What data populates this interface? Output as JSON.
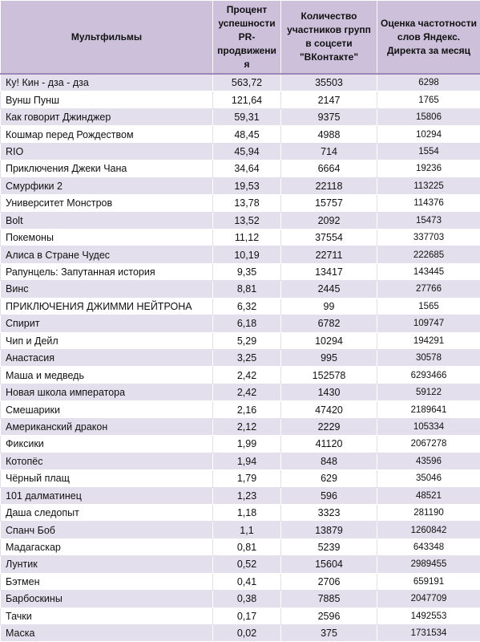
{
  "table": {
    "header": [
      "Мультфильмы",
      "Процент успешности PR-продвижения",
      "Количество участников групп в соцсети \"ВКонтакте\"",
      "Оценка частотности слов Яндекс. Директа за месяц"
    ],
    "rows": [
      [
        "Ку! Кин - дза - дза",
        "563,72",
        "35503",
        "6298"
      ],
      [
        "Вунш Пунш",
        "121,64",
        "2147",
        "1765"
      ],
      [
        "Как говорит Джинджер",
        "59,31",
        "9375",
        "15806"
      ],
      [
        "Кошмар перед Рождеством",
        "48,45",
        "4988",
        "10294"
      ],
      [
        "RIO",
        "45,94",
        "714",
        "1554"
      ],
      [
        "Приключения Джеки Чана",
        "34,64",
        "6664",
        "19236"
      ],
      [
        "Смурфики 2",
        "19,53",
        "22118",
        "113225"
      ],
      [
        "Университет Монстров",
        "13,78",
        "15757",
        "114376"
      ],
      [
        "Bolt",
        "13,52",
        "2092",
        "15473"
      ],
      [
        "Покемоны",
        "11,12",
        "37554",
        "337703"
      ],
      [
        "Алиса в Стране Чудес",
        "10,19",
        "22711",
        "222685"
      ],
      [
        "Рапунцель: Запутанная история",
        "9,35",
        "13417",
        "143445"
      ],
      [
        "Винс",
        "8,81",
        "2445",
        "27766"
      ],
      [
        "ПРИКЛЮЧЕНИЯ ДЖИММИ НЕЙТРОНА",
        "6,32",
        "99",
        "1565"
      ],
      [
        "Спирит",
        "6,18",
        "6782",
        "109747"
      ],
      [
        "Чип и Дейл",
        "5,29",
        "10294",
        "194291"
      ],
      [
        "Анастасия",
        "3,25",
        "995",
        "30578"
      ],
      [
        "Маша и медведь",
        "2,42",
        "152578",
        "6293466"
      ],
      [
        "Новая школа императора",
        "2,42",
        "1430",
        "59122"
      ],
      [
        "Смешарики",
        "2,16",
        "47420",
        "2189641"
      ],
      [
        "Американский дракон",
        "2,12",
        "2229",
        "105334"
      ],
      [
        "Фиксики",
        "1,99",
        "41120",
        "2067278"
      ],
      [
        "Котопёс",
        "1,94",
        "848",
        "43596"
      ],
      [
        "Чёрный плащ",
        "1,79",
        "629",
        "35046"
      ],
      [
        "101 далматинец",
        "1,23",
        "596",
        "48521"
      ],
      [
        "Даша следопыт",
        "1,18",
        "3323",
        "281190"
      ],
      [
        "Спанч Боб",
        "1,1",
        "13879",
        "1260842"
      ],
      [
        "Мадагаскар",
        "0,81",
        "5239",
        "643348"
      ],
      [
        "Лунтик",
        "0,52",
        "15604",
        "2989455"
      ],
      [
        "Бэтмен",
        "0,41",
        "2706",
        "659191"
      ],
      [
        "Барбоскины",
        "0,38",
        "7885",
        "2047709"
      ],
      [
        "Тачки",
        "0,17",
        "2596",
        "1492553"
      ],
      [
        "Маска",
        "0,02",
        "375",
        "1731534"
      ]
    ]
  }
}
